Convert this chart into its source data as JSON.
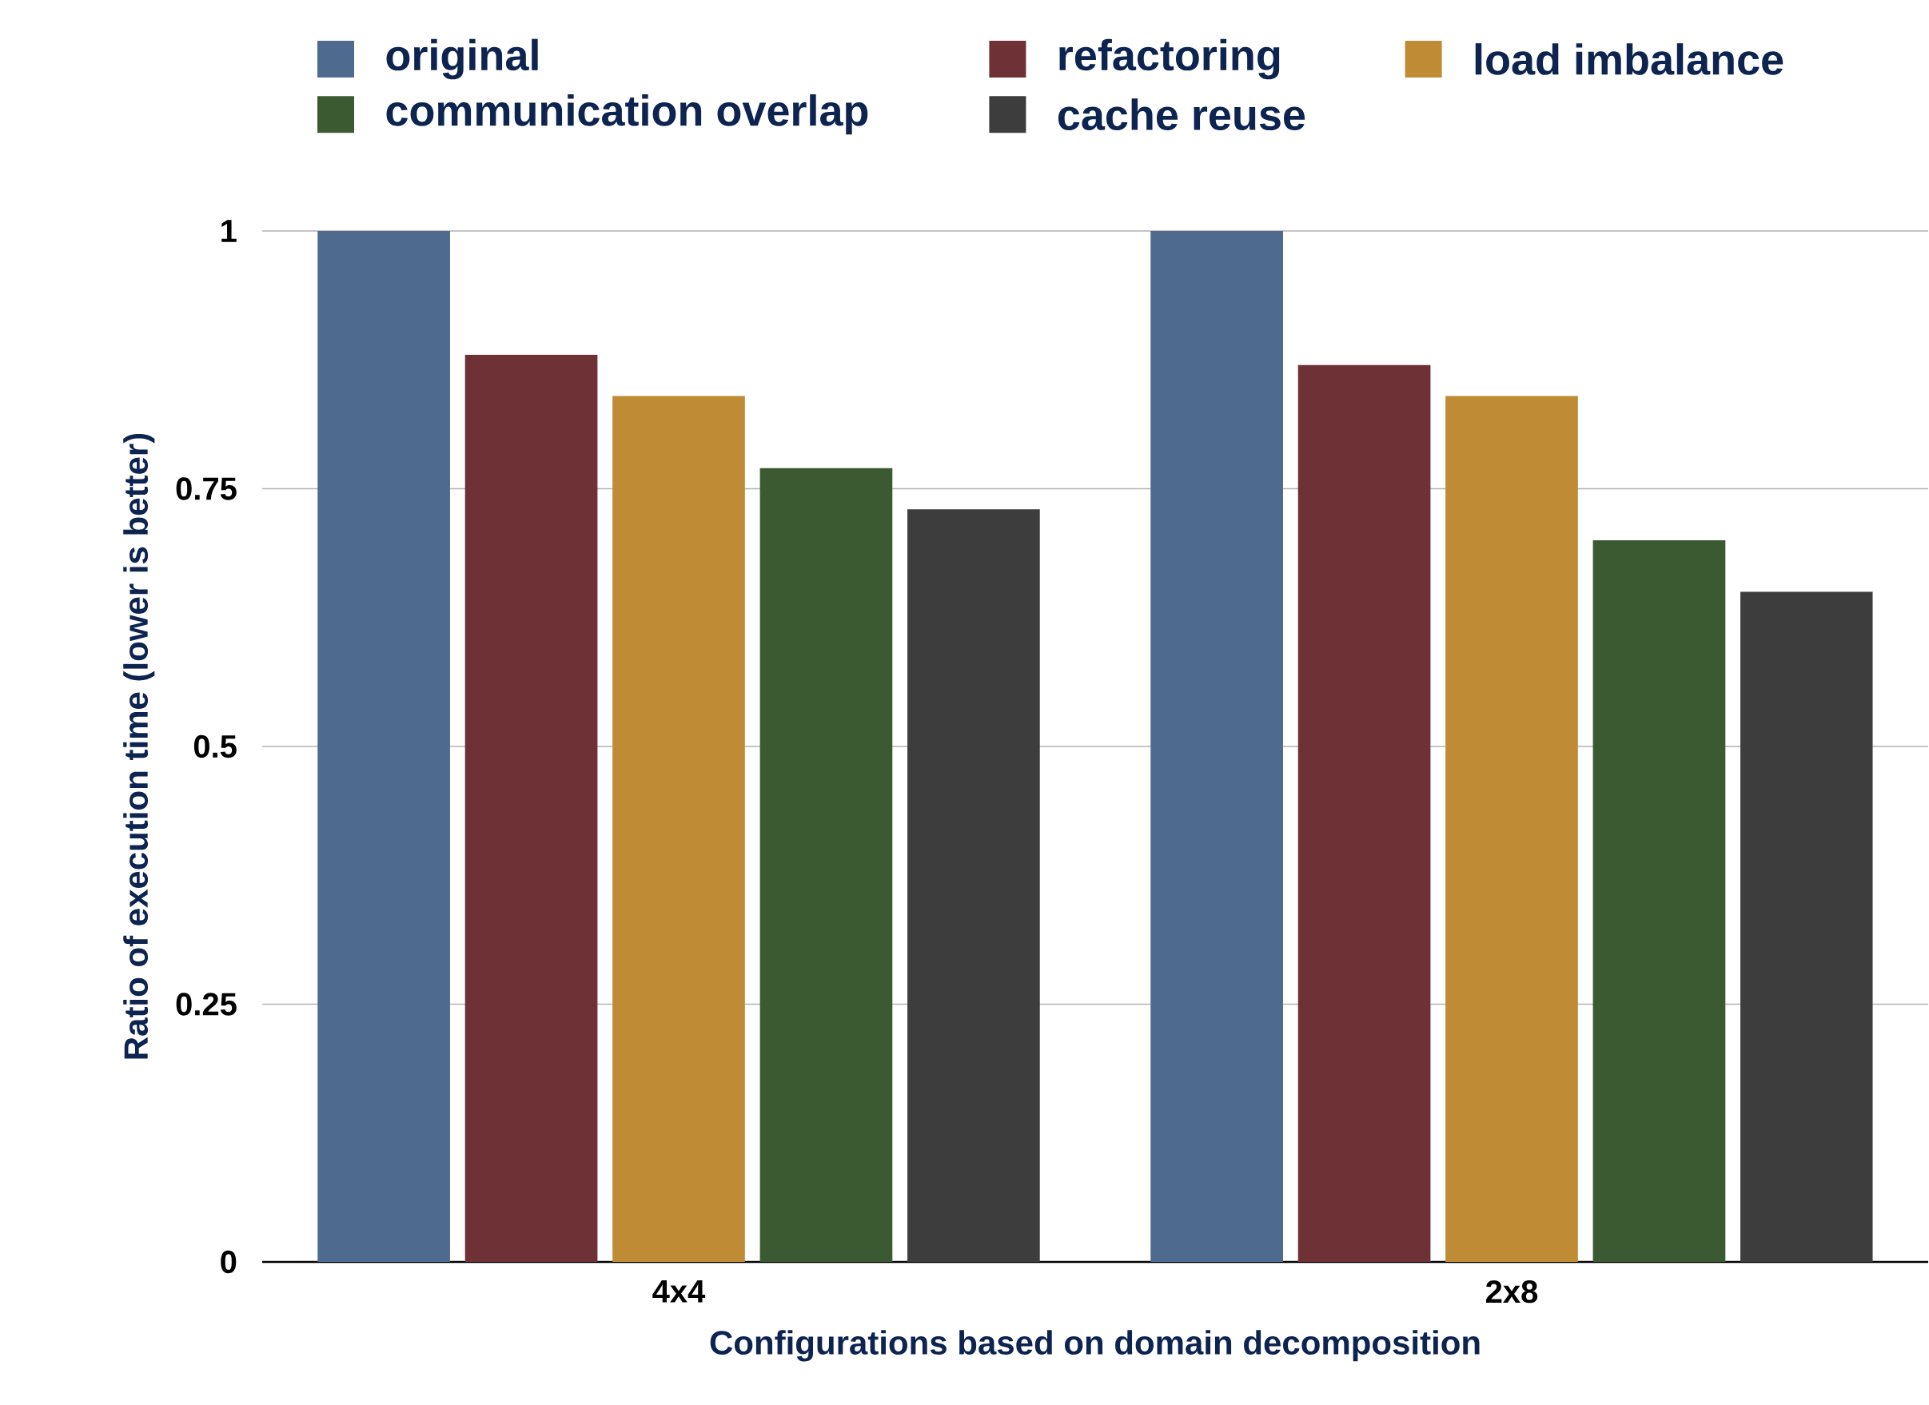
{
  "chart_data": {
    "type": "bar",
    "xlabel": "Configurations based on domain decomposition",
    "ylabel": "Ratio of execution time (lower is better)",
    "categories": [
      "4x4",
      "2x8"
    ],
    "series": [
      {
        "name": "original",
        "color": "#4e6a8e",
        "values": [
          1.0,
          1.0
        ]
      },
      {
        "name": "refactoring",
        "color": "#6e3236",
        "values": [
          0.88,
          0.87
        ]
      },
      {
        "name": "load imbalance",
        "color": "#c08b35",
        "values": [
          0.84,
          0.84
        ]
      },
      {
        "name": "communication overlap",
        "color": "#3b5a32",
        "values": [
          0.77,
          0.7
        ]
      },
      {
        "name": "cache reuse",
        "color": "#3d3d3d",
        "values": [
          0.73,
          0.65
        ]
      }
    ],
    "ylim": [
      0,
      1
    ],
    "yticks": [
      0,
      0.25,
      0.5,
      0.75,
      1
    ],
    "grid": "y",
    "legend": "top"
  }
}
